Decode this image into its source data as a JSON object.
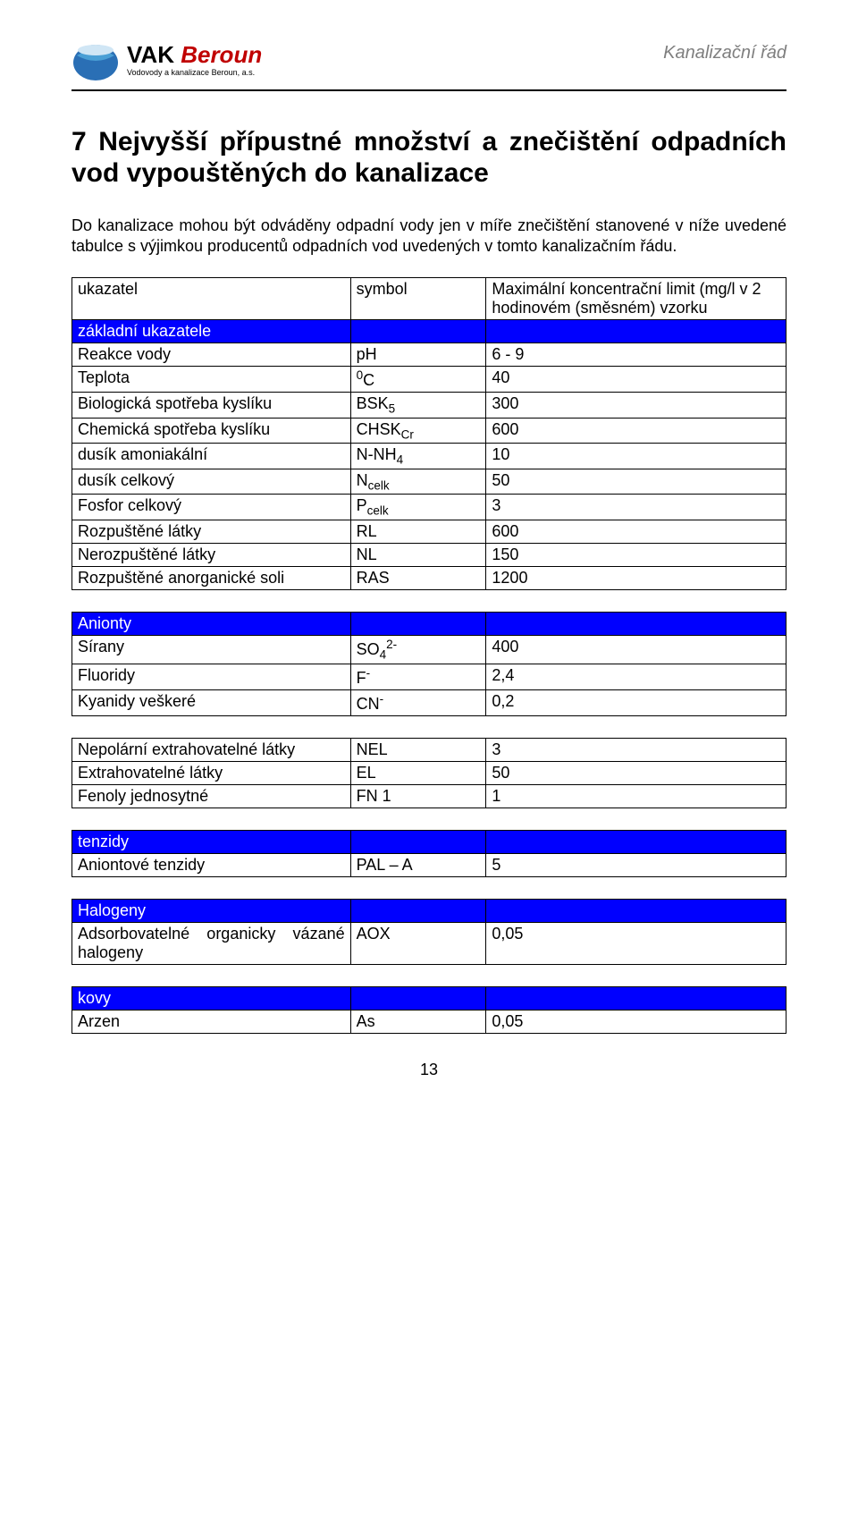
{
  "header": {
    "logo_main_a": "VAK",
    "logo_main_b": "Beroun",
    "logo_sub": "Vodovody a kanalizace Beroun, a.s.",
    "right_text": "Kanalizační řád"
  },
  "title": "7 Nejvyšší přípustné množství a znečištění odpadních vod vypouštěných do kanalizace",
  "intro": "Do kanalizace mohou být odváděny odpadní vody jen v míře znečištění stanovené  v níže uvedené tabulce s výjimkou producentů odpadních vod uvedených v tomto kanalizačním řádu.",
  "table1": {
    "head_col1": "ukazatel",
    "head_col2": "symbol",
    "head_col3": "Maximální koncentrační limit (mg/l v 2 hodinovém (směsném) vzorku",
    "section": "základní ukazatele",
    "rows": [
      {
        "c1": "Reakce vody",
        "c2": "pH",
        "c3": "6 - 9"
      },
      {
        "c1": "Teplota",
        "c2_html": "<span class='sup'>0</span>C",
        "c3": "40"
      },
      {
        "c1": "Biologická spotřeba kyslíku",
        "c2_html": "BSK<span class='sub'>5</span>",
        "c3": "300"
      },
      {
        "c1": "Chemická spotřeba kyslíku",
        "c2_html": "CHSK<span class='sub'>Cr</span>",
        "c3": "600"
      },
      {
        "c1": "dusík amoniakální",
        "c2_html": "N-NH<span class='sub'>4</span>",
        "c3": "10"
      },
      {
        "c1": "dusík celkový",
        "c2_html": "N<span class='sub'>celk</span>",
        "c3": "50"
      },
      {
        "c1": "Fosfor celkový",
        "c2_html": "P<span class='sub'>celk</span>",
        "c3": "3"
      },
      {
        "c1": "Rozpuštěné látky",
        "c2": "RL",
        "c3": "600"
      },
      {
        "c1": "Nerozpuštěné látky",
        "c2": "NL",
        "c3": "150"
      },
      {
        "c1": "Rozpuštěné anorganické soli",
        "c2": "RAS",
        "c3": "1200"
      }
    ]
  },
  "table2": {
    "section": "Anionty",
    "rows": [
      {
        "c1": "Sírany",
        "c2_html": "SO<span class='sub'>4</span><span class='sup'>2-</span>",
        "c3": "400"
      },
      {
        "c1": "Fluoridy",
        "c2_html": "F<span class='sup'>-</span>",
        "c3": "2,4"
      },
      {
        "c1": "Kyanidy veškeré",
        "c2_html": "CN<span class='sup'>-</span>",
        "c3": "0,2"
      }
    ]
  },
  "table3": {
    "rows": [
      {
        "c1": "Nepolární extrahovatelné látky",
        "c2": "NEL",
        "c3": "3"
      },
      {
        "c1": "Extrahovatelné látky",
        "c2": "EL",
        "c3": "50"
      },
      {
        "c1": "Fenoly jednosytné",
        "c2": "FN 1",
        "c3": "1"
      }
    ]
  },
  "table4": {
    "section": "tenzidy",
    "rows": [
      {
        "c1": "Aniontové tenzidy",
        "c2": "PAL – A",
        "c3": "5"
      }
    ]
  },
  "table5": {
    "section": "Halogeny",
    "rows": [
      {
        "c1": "Adsorbovatelné organicky vázané halogeny",
        "c2": "AOX",
        "c3": "0,05"
      }
    ]
  },
  "table6": {
    "section": "kovy",
    "rows": [
      {
        "c1": "Arzen",
        "c2": "As",
        "c3": "0,05"
      }
    ]
  },
  "pagenum": "13"
}
